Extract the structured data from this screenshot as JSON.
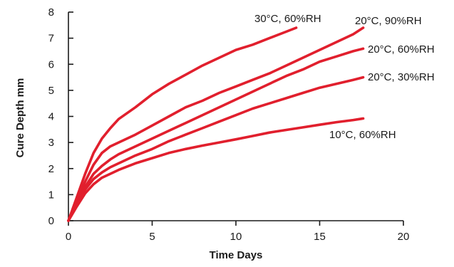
{
  "chart_data": {
    "type": "line",
    "title": "",
    "xlabel": "Time Days",
    "ylabel": "Cure Depth mm",
    "xlim": [
      0,
      20
    ],
    "ylim": [
      0,
      8
    ],
    "xticks": [
      0,
      5,
      10,
      15,
      20
    ],
    "yticks": [
      0,
      1,
      2,
      3,
      4,
      5,
      6,
      7,
      8
    ],
    "grid": false,
    "line_color": "#e11f2d",
    "series": [
      {
        "name": "30°C, 60%RH",
        "x": [
          0,
          0.5,
          1,
          1.5,
          2,
          2.5,
          3,
          4,
          5,
          6,
          7,
          8,
          9,
          10,
          11,
          12,
          13,
          13.6
        ],
        "y": [
          0,
          0.9,
          1.8,
          2.6,
          3.15,
          3.55,
          3.9,
          4.35,
          4.85,
          5.25,
          5.6,
          5.95,
          6.25,
          6.55,
          6.75,
          7.0,
          7.25,
          7.4
        ]
      },
      {
        "name": "20°C, 90%RH",
        "x": [
          0,
          0.5,
          1,
          1.5,
          2,
          2.5,
          3,
          4,
          5,
          6,
          7,
          8,
          9,
          10,
          11,
          12,
          13,
          14,
          15,
          16,
          17,
          17.6
        ],
        "y": [
          0,
          0.8,
          1.5,
          2.15,
          2.6,
          2.85,
          3.0,
          3.3,
          3.65,
          4.0,
          4.35,
          4.6,
          4.9,
          5.15,
          5.4,
          5.65,
          5.95,
          6.25,
          6.55,
          6.85,
          7.15,
          7.4
        ]
      },
      {
        "name": "20°C, 60%RH",
        "x": [
          0,
          0.5,
          1,
          1.5,
          2,
          2.5,
          3,
          4,
          5,
          6,
          7,
          8,
          9,
          10,
          11,
          12,
          13,
          14,
          15,
          16,
          17,
          17.6
        ],
        "y": [
          0,
          0.7,
          1.3,
          1.8,
          2.1,
          2.35,
          2.55,
          2.85,
          3.15,
          3.45,
          3.75,
          4.05,
          4.35,
          4.65,
          4.95,
          5.25,
          5.55,
          5.8,
          6.1,
          6.3,
          6.5,
          6.6
        ]
      },
      {
        "name": "20°C, 30%RH",
        "x": [
          0,
          0.5,
          1,
          1.5,
          2,
          2.5,
          3,
          4,
          5,
          6,
          7,
          8,
          9,
          10,
          11,
          12,
          13,
          14,
          15,
          16,
          17,
          17.6
        ],
        "y": [
          0,
          0.65,
          1.2,
          1.6,
          1.85,
          2.05,
          2.2,
          2.5,
          2.75,
          3.05,
          3.3,
          3.55,
          3.8,
          4.05,
          4.3,
          4.5,
          4.7,
          4.9,
          5.1,
          5.25,
          5.4,
          5.5
        ]
      },
      {
        "name": "10°C, 60%RH",
        "x": [
          0,
          0.5,
          1,
          1.5,
          2,
          2.5,
          3,
          4,
          5,
          6,
          7,
          8,
          9,
          10,
          11,
          12,
          13,
          14,
          15,
          16,
          17,
          17.6
        ],
        "y": [
          0,
          0.55,
          1.05,
          1.4,
          1.65,
          1.8,
          1.95,
          2.2,
          2.4,
          2.6,
          2.75,
          2.88,
          3.0,
          3.12,
          3.25,
          3.38,
          3.48,
          3.58,
          3.68,
          3.78,
          3.86,
          3.92
        ]
      }
    ]
  }
}
